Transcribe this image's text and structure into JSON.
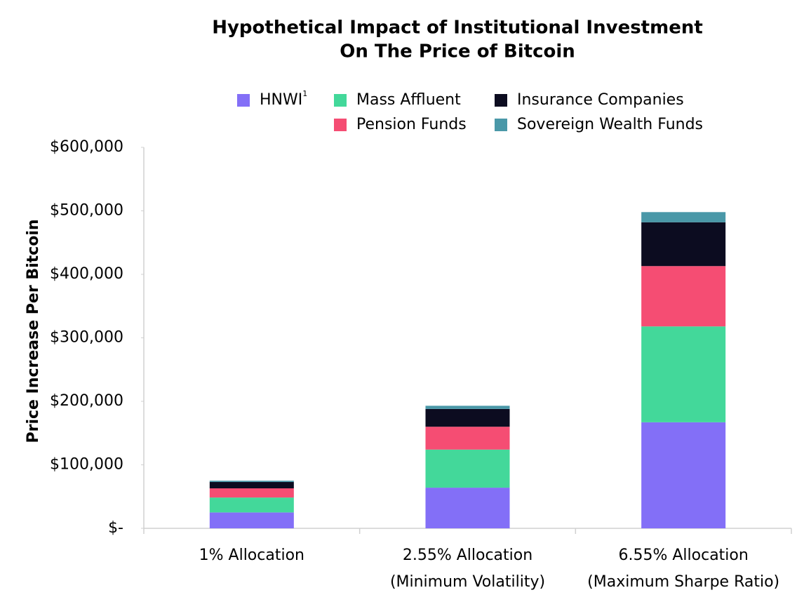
{
  "chart_data": {
    "type": "stacked_bar",
    "title": [
      "Hypothetical Impact of Institutional Investment",
      "On The Price of Bitcoin"
    ],
    "y_axis_label": "Price Increase Per Bitcoin",
    "categories": [
      [
        "1% Allocation"
      ],
      [
        "2.55% Allocation",
        "(Minimum Volatility)"
      ],
      [
        "6.55% Allocation",
        "(Maximum Sharpe Ratio)"
      ]
    ],
    "series": [
      {
        "name": "HNWI",
        "name_superscript": "1",
        "color": "#836ff7",
        "values": [
          25000,
          64000,
          167000
        ]
      },
      {
        "name": "Mass Affluent",
        "color": "#43d89a",
        "values": [
          23500,
          60000,
          151000
        ]
      },
      {
        "name": "Pension Funds",
        "color": "#f54d73",
        "values": [
          14500,
          36000,
          95000
        ]
      },
      {
        "name": "Insurance Companies",
        "color": "#0c0c20",
        "values": [
          10000,
          28000,
          69000
        ]
      },
      {
        "name": "Sovereign Wealth Funds",
        "color": "#4a98a8",
        "values": [
          2000,
          5000,
          16000
        ]
      }
    ],
    "ylim": [
      0,
      600000
    ],
    "yticks": [
      {
        "value": 0,
        "label": "$-"
      },
      {
        "value": 100000,
        "label": "$100,000"
      },
      {
        "value": 200000,
        "label": "$200,000"
      },
      {
        "value": 300000,
        "label": "$300,000"
      },
      {
        "value": 400000,
        "label": "$400,000"
      },
      {
        "value": 500000,
        "label": "$500,000"
      },
      {
        "value": 600000,
        "label": "$600,000"
      }
    ],
    "grid": false
  }
}
